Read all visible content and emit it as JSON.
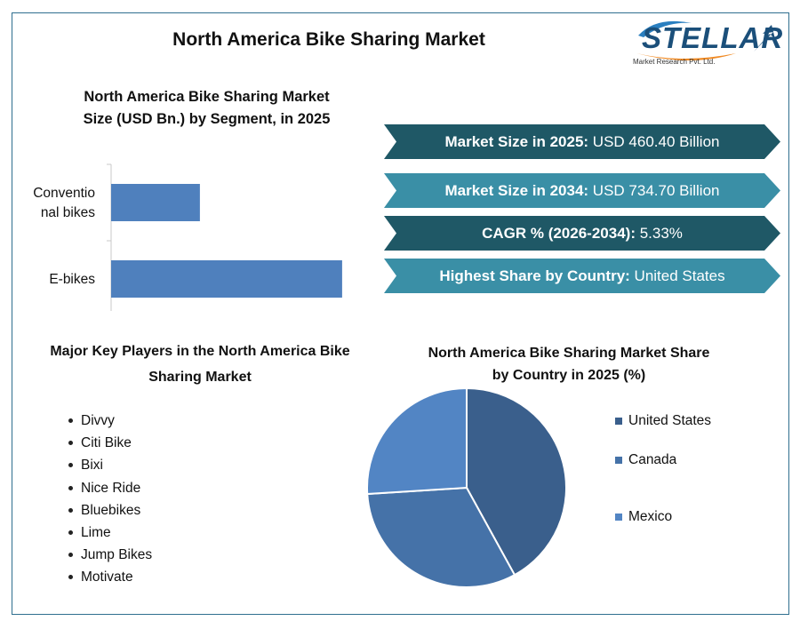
{
  "title": "North America Bike Sharing Market",
  "logo": {
    "word": "STELLAR",
    "subtitle": "Market Research Pvt. Ltd."
  },
  "segment_chart_title": [
    "North America Bike Sharing Market",
    "Size (USD Bn.) by Segment, in 2025"
  ],
  "banners": [
    {
      "label": "Market Size in 2025:",
      "value": " USD 460.40 Billion",
      "color": "#1f5866"
    },
    {
      "label": "Market Size in 2034:",
      "value": " USD 734.70 Billion",
      "color": "#3a8fa6"
    },
    {
      "label": "CAGR % (2026-2034):",
      "value": " 5.33%",
      "color": "#1f5866"
    },
    {
      "label": "Highest Share by Country:",
      "value": " United States",
      "color": "#3a8fa6"
    }
  ],
  "players_title": [
    "Major Key Players in the North America Bike",
    "Sharing Market"
  ],
  "players": [
    "Divvy",
    "Citi Bike",
    "Bixi",
    "Nice Ride",
    "Bluebikes",
    "Lime",
    "Jump Bikes",
    "Motivate"
  ],
  "pie_title": [
    "North America Bike Sharing Market Share",
    "by Country in 2025 (%)"
  ],
  "chart_data": [
    {
      "type": "bar",
      "orientation": "horizontal",
      "categories": [
        "Conventio nal bikes",
        "E-bikes"
      ],
      "category_lines": [
        [
          "Conventio",
          "nal bikes"
        ],
        [
          "E-bikes"
        ]
      ],
      "values": [
        98,
        255
      ],
      "xlim": [
        0,
        260
      ],
      "bar_color": "#4f80bd",
      "grid": false
    },
    {
      "type": "pie",
      "categories": [
        "United States",
        "Canada",
        "Mexico"
      ],
      "values": [
        42,
        32,
        26
      ],
      "colors": [
        "#3a5f8c",
        "#4572a8",
        "#5285c4"
      ],
      "legend": "right"
    }
  ]
}
